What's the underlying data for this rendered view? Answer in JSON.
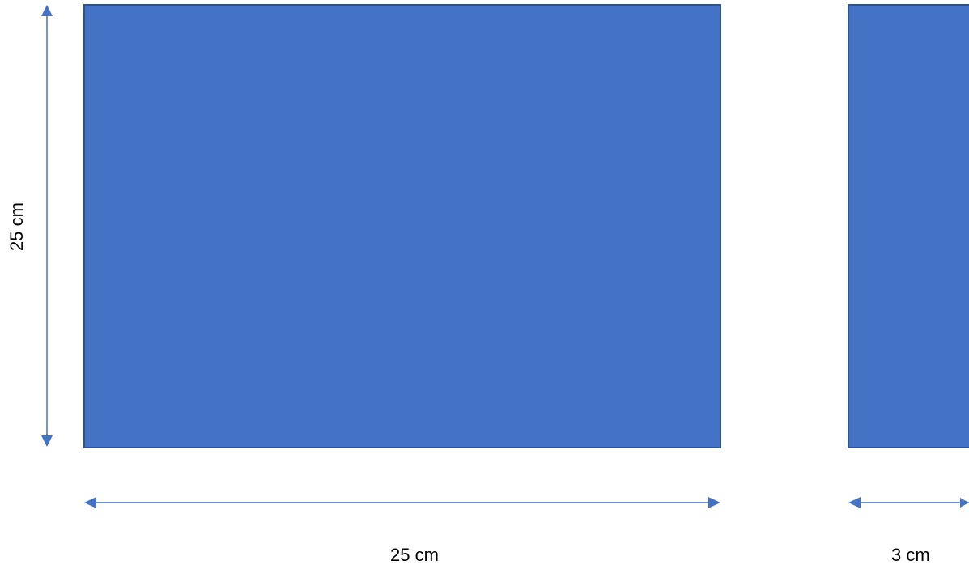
{
  "colors": {
    "shape_fill": "#4472C4",
    "shape_stroke": "#2F528F",
    "arrow": "#4472C4",
    "text": "#000000"
  },
  "labels": {
    "height": "25 cm",
    "width_left": "25 cm",
    "width_right": "3 cm"
  }
}
